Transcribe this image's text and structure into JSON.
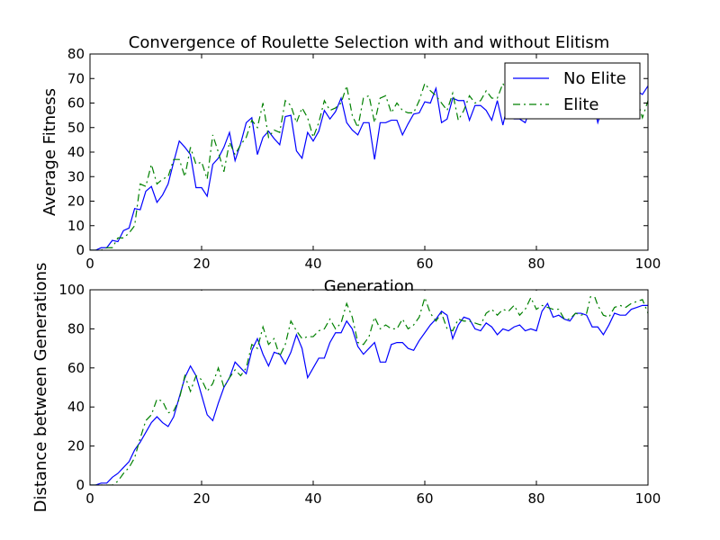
{
  "chart_data": [
    {
      "type": "line",
      "title": "Convergence of Roulette Selection with and without Elitism",
      "xlabel": "Generation",
      "ylabel": "Average Fitness",
      "xlim": [
        0,
        100
      ],
      "ylim": [
        0,
        80
      ],
      "xticks": [
        0,
        20,
        40,
        60,
        80,
        100
      ],
      "yticks": [
        0,
        10,
        20,
        30,
        40,
        50,
        60,
        70,
        80
      ],
      "grid": false,
      "legend": "top-right",
      "x": [
        0,
        1,
        2,
        3,
        4,
        5,
        6,
        7,
        8,
        9,
        10,
        11,
        12,
        13,
        14,
        15,
        16,
        17,
        18,
        19,
        20,
        21,
        22,
        23,
        24,
        25,
        26,
        27,
        28,
        29,
        30,
        31,
        32,
        33,
        34,
        35,
        36,
        37,
        38,
        39,
        40,
        41,
        42,
        43,
        44,
        45,
        46,
        47,
        48,
        49,
        50,
        51,
        52,
        53,
        54,
        55,
        56,
        57,
        58,
        59,
        60,
        61,
        62,
        63,
        64,
        65,
        66,
        67,
        68,
        69,
        70,
        71,
        72,
        73,
        74,
        75,
        76,
        77,
        78,
        79,
        80,
        81,
        82,
        83,
        84,
        85,
        86,
        87,
        88,
        89,
        90,
        91,
        92,
        93,
        94,
        95,
        96,
        97,
        98,
        99,
        100
      ],
      "series": [
        {
          "name": "No Elite",
          "color": "#0000ff",
          "style": "solid",
          "values": [
            0,
            0,
            1,
            1,
            4,
            3.5,
            8,
            9,
            17,
            16.5,
            24,
            26,
            19.5,
            22.5,
            27,
            36,
            44.5,
            42,
            39,
            25.5,
            25.5,
            22,
            35,
            37.5,
            42,
            48,
            36.5,
            43.5,
            52,
            54,
            39,
            46,
            48.5,
            45.5,
            43,
            54.5,
            55,
            40.5,
            37.5,
            48,
            44.5,
            48.5,
            57,
            53.5,
            56.5,
            62,
            52,
            49,
            47,
            52,
            52,
            37,
            52,
            52,
            53,
            53,
            47,
            51.5,
            55.5,
            56,
            60.5,
            60,
            66,
            52,
            53.5,
            62,
            61,
            61,
            53,
            59,
            59,
            57,
            53,
            61,
            51,
            61,
            53.5,
            53.5,
            52,
            58.5,
            60,
            60,
            65,
            63,
            62,
            60,
            61.5,
            65,
            63,
            64,
            63,
            52,
            59,
            60,
            62,
            61,
            61,
            64,
            65,
            63.5,
            67
          ]
        },
        {
          "name": "Elite",
          "color": "#008000",
          "style": "dashdot",
          "values": [
            0,
            0,
            0,
            1,
            1,
            5,
            5,
            7,
            10,
            27,
            26,
            35,
            27,
            29,
            30,
            37,
            37,
            30,
            42,
            35,
            36,
            29,
            47,
            40,
            32,
            44,
            39,
            43,
            46,
            53,
            50,
            60,
            46,
            49,
            48,
            61,
            59,
            52,
            58,
            54,
            46,
            52,
            61,
            57,
            58,
            60,
            67,
            55,
            50,
            62,
            63,
            52,
            62,
            63,
            56,
            60,
            57,
            56,
            56,
            61,
            68,
            65,
            63,
            60,
            57,
            64,
            53,
            57,
            63,
            60,
            61,
            65,
            62,
            62,
            68,
            63,
            61,
            60,
            61,
            62,
            60,
            62,
            60,
            62,
            59,
            61,
            62,
            62,
            62,
            61,
            62,
            62,
            60,
            61,
            62,
            63,
            61,
            63,
            62,
            54,
            61
          ]
        }
      ]
    },
    {
      "type": "line",
      "title": "",
      "xlabel": "",
      "ylabel": "Distance between Generations",
      "xlim": [
        0,
        100
      ],
      "ylim": [
        0,
        100
      ],
      "xticks": [
        0,
        20,
        40,
        60,
        80,
        100
      ],
      "yticks": [
        0,
        20,
        40,
        60,
        80,
        100
      ],
      "grid": false,
      "x": [
        0,
        1,
        2,
        3,
        4,
        5,
        6,
        7,
        8,
        9,
        10,
        11,
        12,
        13,
        14,
        15,
        16,
        17,
        18,
        19,
        20,
        21,
        22,
        23,
        24,
        25,
        26,
        27,
        28,
        29,
        30,
        31,
        32,
        33,
        34,
        35,
        36,
        37,
        38,
        39,
        40,
        41,
        42,
        43,
        44,
        45,
        46,
        47,
        48,
        49,
        50,
        51,
        52,
        53,
        54,
        55,
        56,
        57,
        58,
        59,
        60,
        61,
        62,
        63,
        64,
        65,
        66,
        67,
        68,
        69,
        70,
        71,
        72,
        73,
        74,
        75,
        76,
        77,
        78,
        79,
        80,
        81,
        82,
        83,
        84,
        85,
        86,
        87,
        88,
        89,
        90,
        91,
        92,
        93,
        94,
        95,
        96,
        97,
        98,
        99,
        100
      ],
      "series": [
        {
          "name": "No Elite",
          "color": "#0000ff",
          "style": "solid",
          "values": [
            0,
            0,
            1,
            1,
            4,
            6,
            9,
            12,
            18,
            22,
            27,
            32,
            35,
            32,
            30,
            35,
            45,
            55,
            61,
            56,
            46,
            36,
            33,
            42,
            50,
            55,
            63,
            60,
            57,
            69,
            75,
            67,
            61,
            68,
            67,
            62,
            68,
            77,
            70,
            55,
            60,
            65,
            65,
            73,
            78,
            78,
            84,
            80,
            71,
            67,
            70,
            73,
            63,
            63,
            72,
            73,
            73,
            70,
            69,
            74,
            78,
            82,
            85,
            89,
            87,
            75,
            82,
            86,
            85,
            80,
            79,
            83,
            81,
            77,
            80,
            79,
            81,
            82,
            79,
            80,
            79,
            89,
            93,
            86,
            87,
            85,
            84,
            88,
            88,
            87,
            81,
            81,
            77,
            82,
            88,
            87,
            87,
            90,
            91,
            92,
            92
          ]
        },
        {
          "name": "Elite",
          "color": "#008000",
          "style": "dashdot",
          "values": [
            0,
            0,
            0,
            0,
            0,
            2,
            6,
            9,
            14,
            24,
            33,
            36,
            44,
            43,
            37,
            38,
            44,
            56,
            48,
            56,
            54,
            48,
            52,
            60,
            50,
            55,
            59,
            56,
            60,
            72,
            70,
            81,
            72,
            75,
            66,
            72,
            84,
            79,
            75,
            76,
            76,
            79,
            80,
            85,
            80,
            83,
            93,
            86,
            73,
            72,
            76,
            86,
            80,
            82,
            80,
            80,
            85,
            80,
            82,
            86,
            96,
            88,
            84,
            88,
            80,
            79,
            85,
            84,
            84,
            83,
            82,
            88,
            90,
            87,
            90,
            89,
            92,
            87,
            90,
            96,
            90,
            92,
            91,
            90,
            90,
            85,
            85,
            88,
            87,
            88,
            100,
            92,
            87,
            86,
            91,
            92,
            91,
            93,
            94,
            95,
            88
          ]
        }
      ]
    }
  ]
}
